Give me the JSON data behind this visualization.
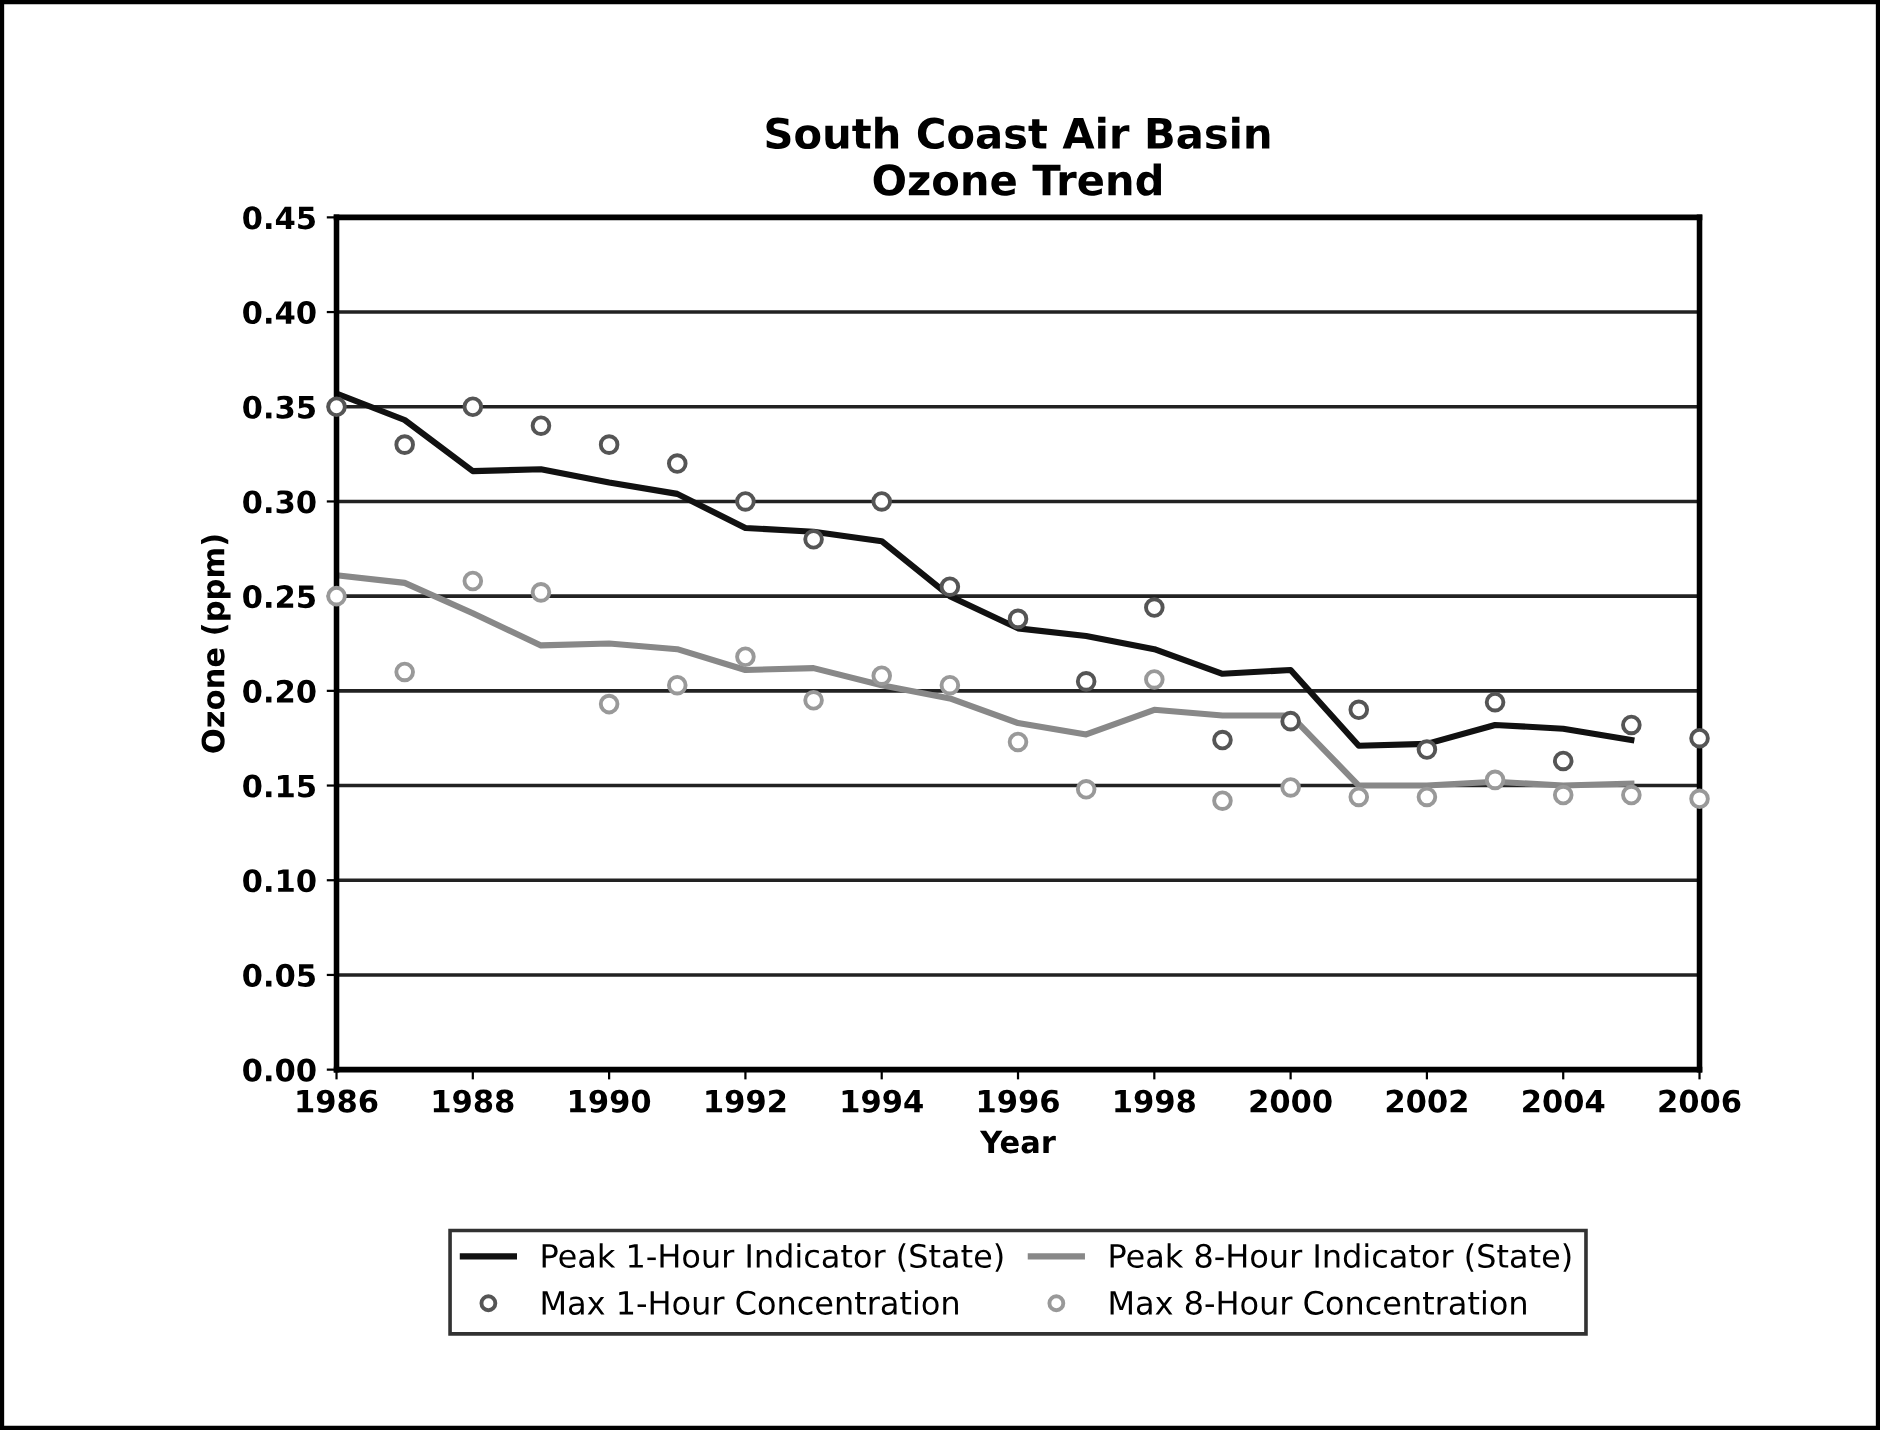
{
  "chart_data": {
    "type": "line",
    "title": "South Coast Air Basin\nOzone Trend",
    "xlabel": "Year",
    "ylabel": "Ozone (ppm)",
    "xlim": [
      1986,
      2006
    ],
    "xticks": [
      1986,
      1988,
      1990,
      1992,
      1994,
      1996,
      1998,
      2000,
      2002,
      2004,
      2006
    ],
    "ylim": [
      0,
      0.45
    ],
    "yticks": [
      {
        "value": 0,
        "label": "0.00"
      },
      {
        "value": 0.05,
        "label": "0.05"
      },
      {
        "value": 0.1,
        "label": "0.10"
      },
      {
        "value": 0.15,
        "label": "0.15"
      },
      {
        "value": 0.2,
        "label": "0.20"
      },
      {
        "value": 0.25,
        "label": "0.25"
      },
      {
        "value": 0.3,
        "label": "0.30"
      },
      {
        "value": 0.35,
        "label": "0.35"
      },
      {
        "value": 0.4,
        "label": "0.40"
      },
      {
        "value": 0.45,
        "label": "0.45"
      }
    ],
    "grid": "y",
    "legend": "bottom",
    "series": [
      {
        "name": "Peak 1-Hour Indicator (State)",
        "marker": "none",
        "color": "#111111",
        "x": [
          1986,
          1987,
          1988,
          1989,
          1990,
          1991,
          1992,
          1993,
          1994,
          1995,
          1996,
          1997,
          1998,
          1999,
          2000,
          2001,
          2002,
          2003,
          2004,
          2005
        ],
        "values": [
          0.357,
          0.343,
          0.316,
          0.317,
          0.31,
          0.304,
          0.286,
          0.284,
          0.279,
          0.25,
          0.233,
          0.229,
          0.222,
          0.209,
          0.211,
          0.171,
          0.172,
          0.182,
          0.18,
          0.174
        ]
      },
      {
        "name": "Peak 8-Hour Indicator (State)",
        "marker": "none",
        "color": "#888888",
        "x": [
          1986,
          1987,
          1988,
          1989,
          1990,
          1991,
          1992,
          1993,
          1994,
          1995,
          1996,
          1997,
          1998,
          1999,
          2000,
          2001,
          2002,
          2003,
          2004,
          2005
        ],
        "values": [
          0.261,
          0.257,
          0.241,
          0.224,
          0.225,
          0.222,
          0.211,
          0.212,
          0.203,
          0.196,
          0.183,
          0.177,
          0.19,
          0.187,
          0.187,
          0.15,
          0.15,
          0.152,
          0.15,
          0.151
        ]
      },
      {
        "name": "Max 1-Hour Concentration",
        "type": "scatter",
        "marker": "circle",
        "color": "#555555",
        "x": [
          1986,
          1987,
          1988,
          1989,
          1990,
          1991,
          1992,
          1993,
          1994,
          1995,
          1996,
          1997,
          1998,
          1999,
          2000,
          2001,
          2002,
          2003,
          2004,
          2005,
          2006
        ],
        "values": [
          0.35,
          0.33,
          0.35,
          0.34,
          0.33,
          0.32,
          0.3,
          0.28,
          0.3,
          0.255,
          0.238,
          0.205,
          0.244,
          0.174,
          0.184,
          0.19,
          0.169,
          0.194,
          0.163,
          0.182,
          0.175
        ]
      },
      {
        "name": "Max 8-Hour Concentration",
        "type": "scatter",
        "marker": "circle",
        "color": "#999999",
        "x": [
          1986,
          1987,
          1988,
          1989,
          1990,
          1991,
          1992,
          1993,
          1994,
          1995,
          1996,
          1997,
          1998,
          1999,
          2000,
          2001,
          2002,
          2003,
          2004,
          2005,
          2006
        ],
        "values": [
          0.25,
          0.21,
          0.258,
          0.252,
          0.193,
          0.203,
          0.218,
          0.195,
          0.208,
          0.203,
          0.173,
          0.148,
          0.206,
          0.142,
          0.149,
          0.144,
          0.144,
          0.153,
          0.145,
          0.145,
          0.143
        ]
      }
    ]
  }
}
